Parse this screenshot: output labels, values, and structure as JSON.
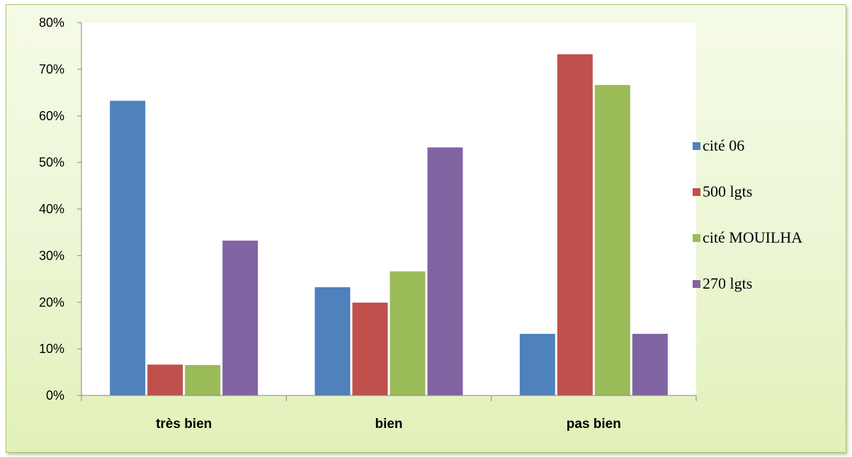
{
  "chart_data": {
    "type": "bar",
    "categories": [
      "très bien",
      "bien",
      "pas bien"
    ],
    "series": [
      {
        "name": "cité 06",
        "color": "#4f81bd",
        "values": [
          63.3,
          23.3,
          13.3
        ]
      },
      {
        "name": "500 lgts",
        "color": "#c0504d",
        "values": [
          6.7,
          20.0,
          73.3
        ]
      },
      {
        "name": "cité MOUILHA",
        "color": "#9bbb59",
        "values": [
          6.6,
          26.7,
          66.7
        ]
      },
      {
        "name": "270 lgts",
        "color": "#8064a2",
        "values": [
          33.3,
          53.3,
          13.3
        ]
      }
    ],
    "yticks": [
      "0%",
      "10%",
      "20%",
      "30%",
      "40%",
      "50%",
      "60%",
      "70%",
      "80%"
    ],
    "ylim": [
      0,
      80
    ],
    "grid": false,
    "legend_position": "right",
    "plot_background": "#ffffff",
    "chart_background": "#ecf6d4",
    "title": "",
    "xlabel": "",
    "ylabel": ""
  }
}
